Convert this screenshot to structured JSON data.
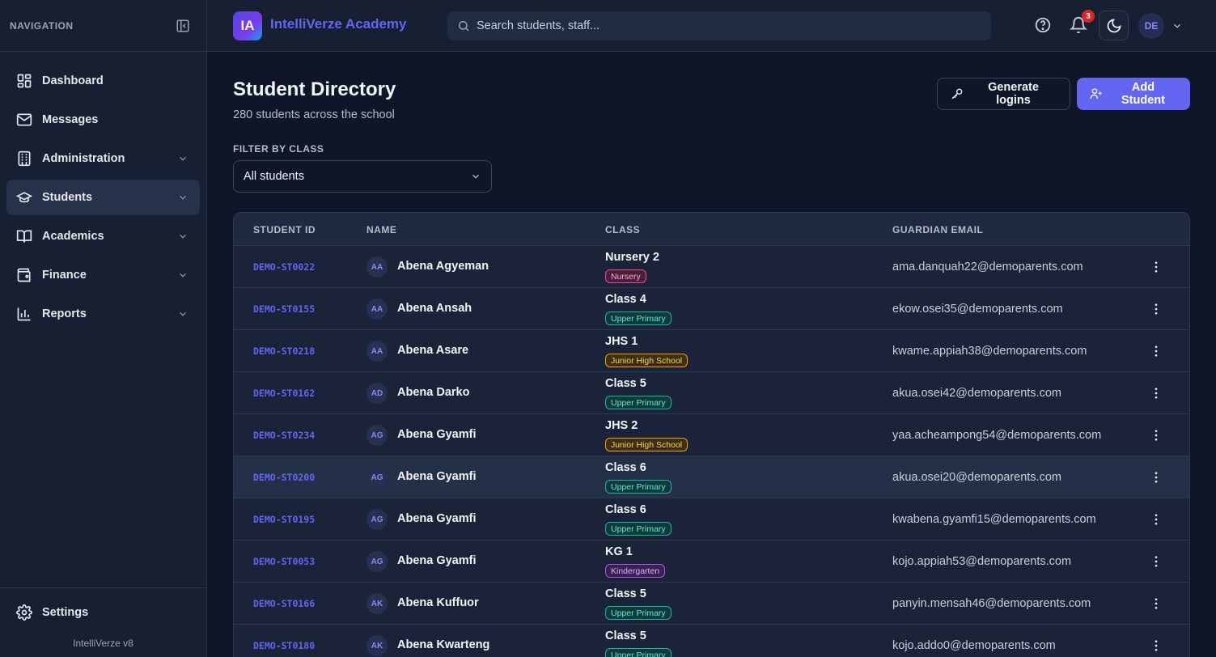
{
  "sidebar": {
    "header": "NAVIGATION",
    "items": [
      {
        "label": "Dashboard",
        "icon": "dashboard-icon",
        "has_submenu": false,
        "active": false
      },
      {
        "label": "Messages",
        "icon": "mail-icon",
        "has_submenu": false,
        "active": false
      },
      {
        "label": "Administration",
        "icon": "building-icon",
        "has_submenu": true,
        "active": false
      },
      {
        "label": "Students",
        "icon": "graduation-cap-icon",
        "has_submenu": true,
        "active": true
      },
      {
        "label": "Academics",
        "icon": "book-icon",
        "has_submenu": true,
        "active": false
      },
      {
        "label": "Finance",
        "icon": "wallet-icon",
        "has_submenu": true,
        "active": false
      },
      {
        "label": "Reports",
        "icon": "bar-chart-icon",
        "has_submenu": true,
        "active": false
      }
    ],
    "settings_label": "Settings",
    "version": "IntelliVerze v8"
  },
  "topbar": {
    "logo_text": "IA",
    "brand": "IntelliVerze Academy",
    "search_placeholder": "Search students, staff...",
    "notification_count": "3",
    "user_initials": "DE"
  },
  "page": {
    "title": "Student Directory",
    "subtitle": "280 students across the school",
    "generate_logins_label": "Generate logins",
    "add_student_label": "Add Student",
    "filter_label": "FILTER BY CLASS",
    "filter_value": "All students"
  },
  "table": {
    "headers": {
      "id": "STUDENT ID",
      "name": "NAME",
      "class": "CLASS",
      "email": "GUARDIAN EMAIL"
    },
    "rows": [
      {
        "id": "DEMO-ST0022",
        "initials": "AA",
        "name": "Abena Agyeman",
        "class": "Nursery 2",
        "level": "Nursery",
        "email": "ama.danquah22@demoparents.com"
      },
      {
        "id": "DEMO-ST0155",
        "initials": "AA",
        "name": "Abena Ansah",
        "class": "Class 4",
        "level": "Upper Primary",
        "email": "ekow.osei35@demoparents.com"
      },
      {
        "id": "DEMO-ST0218",
        "initials": "AA",
        "name": "Abena Asare",
        "class": "JHS 1",
        "level": "Junior High School",
        "email": "kwame.appiah38@demoparents.com"
      },
      {
        "id": "DEMO-ST0162",
        "initials": "AD",
        "name": "Abena Darko",
        "class": "Class 5",
        "level": "Upper Primary",
        "email": "akua.osei42@demoparents.com"
      },
      {
        "id": "DEMO-ST0234",
        "initials": "AG",
        "name": "Abena Gyamfi",
        "class": "JHS 2",
        "level": "Junior High School",
        "email": "yaa.acheampong54@demoparents.com"
      },
      {
        "id": "DEMO-ST0200",
        "initials": "AG",
        "name": "Abena Gyamfi",
        "class": "Class 6",
        "level": "Upper Primary",
        "email": "akua.osei20@demoparents.com"
      },
      {
        "id": "DEMO-ST0195",
        "initials": "AG",
        "name": "Abena Gyamfi",
        "class": "Class 6",
        "level": "Upper Primary",
        "email": "kwabena.gyamfi15@demoparents.com"
      },
      {
        "id": "DEMO-ST0053",
        "initials": "AG",
        "name": "Abena Gyamfi",
        "class": "KG 1",
        "level": "Kindergarten",
        "email": "kojo.appiah53@demoparents.com"
      },
      {
        "id": "DEMO-ST0166",
        "initials": "AK",
        "name": "Abena Kuffuor",
        "class": "Class 5",
        "level": "Upper Primary",
        "email": "panyin.mensah46@demoparents.com"
      },
      {
        "id": "DEMO-ST0180",
        "initials": "AK",
        "name": "Abena Kwarteng",
        "class": "Class 5",
        "level": "Upper Primary",
        "email": "kojo.addo0@demoparents.com"
      }
    ]
  },
  "colors": {
    "accent": "#6366f1",
    "background": "#0f1629",
    "sidebar": "#172033",
    "badge": "#dc2626"
  }
}
